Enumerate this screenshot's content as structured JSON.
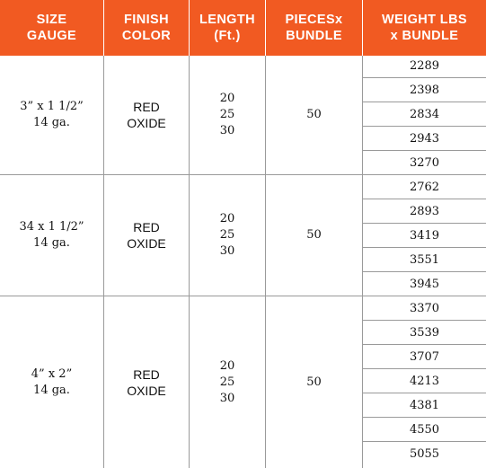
{
  "headers": [
    [
      "SIZE",
      "GAUGE"
    ],
    [
      "FINISH",
      "COLOR"
    ],
    [
      "LENGTH",
      "(Ft.)"
    ],
    [
      "PIECESx",
      "BUNDLE"
    ],
    [
      "WEIGHT LBS",
      "x BUNDLE"
    ]
  ],
  "groups": [
    {
      "size": [
        "3” x 1 1/2”",
        "14 ga."
      ],
      "finish": [
        "RED",
        "OXIDE"
      ],
      "lengths": [
        "20",
        "25",
        "30"
      ],
      "pieces": "50",
      "weights": [
        "2289",
        "2398",
        "2834",
        "2943",
        "3270"
      ]
    },
    {
      "size": [
        "34 x 1 1/2”",
        "14 ga."
      ],
      "finish": [
        "RED",
        "OXIDE"
      ],
      "lengths": [
        "20",
        "25",
        "30"
      ],
      "pieces": "50",
      "weights": [
        "2762",
        "2893",
        "3419",
        "3551",
        "3945"
      ]
    },
    {
      "size": [
        "4” x 2”",
        "14 ga."
      ],
      "finish": [
        "RED",
        "OXIDE"
      ],
      "lengths": [
        "20",
        "25",
        "30"
      ],
      "pieces": "50",
      "weights": [
        "3370",
        "3539",
        "3707",
        "4213",
        "4381",
        "4550",
        "5055"
      ]
    }
  ],
  "colors": {
    "header_bg": "#f15a22",
    "header_text": "#ffffff",
    "grid": "#9a9a9a",
    "text": "#111111"
  }
}
